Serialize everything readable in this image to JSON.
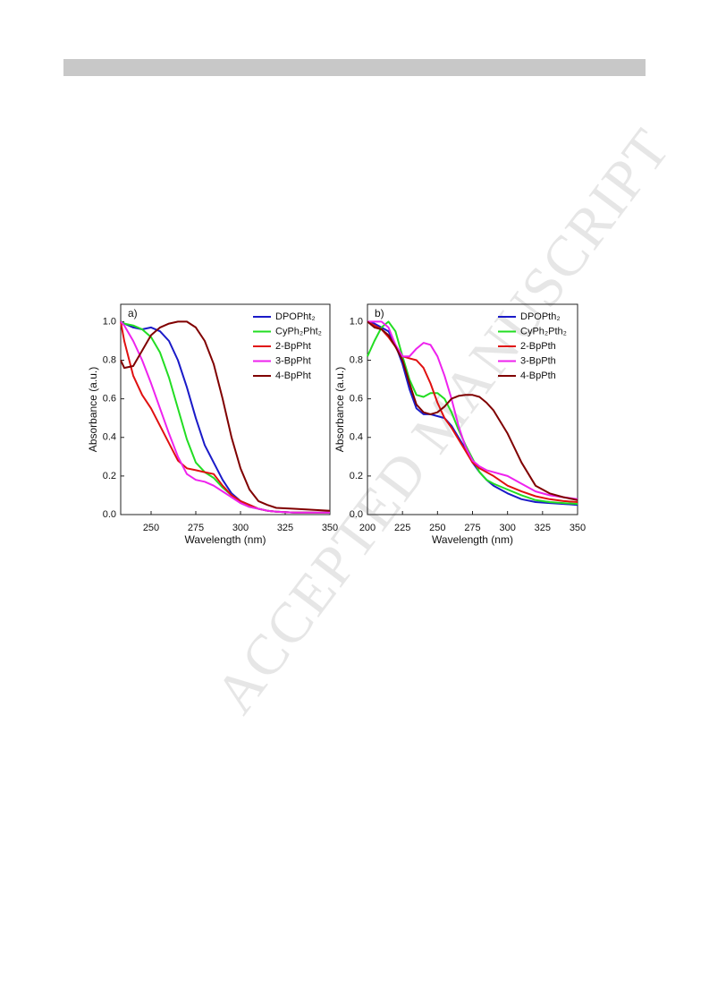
{
  "watermark": "ACCEPTED MANUSCRIPT",
  "chart_data": [
    {
      "type": "line",
      "panel": "a)",
      "x_label": "Wavelength (nm)",
      "y_label": "Absorbance  (a.u.)",
      "x": [
        233,
        235,
        240,
        245,
        250,
        255,
        260,
        265,
        270,
        275,
        280,
        285,
        290,
        295,
        300,
        305,
        310,
        315,
        320,
        330,
        340,
        350
      ],
      "series": [
        {
          "name": "DPOPht₂",
          "color": "#1a1ac8",
          "values": [
            1.0,
            0.99,
            0.97,
            0.96,
            0.97,
            0.95,
            0.9,
            0.8,
            0.66,
            0.5,
            0.36,
            0.27,
            0.18,
            0.11,
            0.07,
            0.05,
            0.03,
            0.02,
            0.015,
            0.01,
            0.01,
            0.01
          ]
        },
        {
          "name": "CyPh₂Pht₂",
          "color": "#22dd22",
          "values": [
            1.0,
            0.99,
            0.98,
            0.96,
            0.92,
            0.84,
            0.71,
            0.55,
            0.39,
            0.27,
            0.22,
            0.19,
            0.14,
            0.1,
            0.06,
            0.04,
            0.03,
            0.02,
            0.015,
            0.01,
            0.01,
            0.01
          ]
        },
        {
          "name": "2-BpPht",
          "color": "#e01010",
          "values": [
            1.0,
            0.9,
            0.72,
            0.62,
            0.55,
            0.46,
            0.37,
            0.28,
            0.24,
            0.23,
            0.22,
            0.21,
            0.15,
            0.1,
            0.07,
            0.05,
            0.03,
            0.02,
            0.015,
            0.01,
            0.01,
            0.01
          ]
        },
        {
          "name": "3-BpPht",
          "color": "#ee22ee",
          "values": [
            1.0,
            0.98,
            0.9,
            0.8,
            0.68,
            0.55,
            0.42,
            0.3,
            0.21,
            0.18,
            0.17,
            0.15,
            0.12,
            0.09,
            0.06,
            0.04,
            0.03,
            0.02,
            0.015,
            0.01,
            0.01,
            0.01
          ]
        },
        {
          "name": "4-BpPht",
          "color": "#800000",
          "values": [
            0.8,
            0.76,
            0.77,
            0.85,
            0.93,
            0.97,
            0.99,
            1.0,
            1.0,
            0.97,
            0.9,
            0.78,
            0.6,
            0.4,
            0.24,
            0.13,
            0.07,
            0.05,
            0.035,
            0.03,
            0.025,
            0.02
          ]
        }
      ],
      "xlim": [
        233,
        350
      ],
      "xticks": [
        250,
        275,
        300,
        325,
        350
      ],
      "ylim": [
        0,
        1.09
      ],
      "yticks": [
        {
          "value": 0,
          "label": "0.0"
        },
        {
          "value": 0.2,
          "label": "0.2"
        },
        {
          "value": 0.4,
          "label": "0.4"
        },
        {
          "value": 0.6,
          "label": "0.6"
        },
        {
          "value": 0.8,
          "label": "0.8"
        },
        {
          "value": 1,
          "label": "1.0"
        }
      ],
      "legend": "upper right",
      "grid": false
    },
    {
      "type": "line",
      "panel": "b)",
      "x_label": "Wavelength (nm)",
      "y_label": "Absorbance  (a.u.)",
      "x": [
        200,
        205,
        210,
        215,
        220,
        225,
        230,
        235,
        240,
        245,
        250,
        255,
        260,
        265,
        270,
        275,
        280,
        285,
        290,
        300,
        310,
        320,
        330,
        340,
        350
      ],
      "series": [
        {
          "name": "DPOPth₂",
          "color": "#1a1ac8",
          "values": [
            1.0,
            0.99,
            0.97,
            0.95,
            0.88,
            0.78,
            0.65,
            0.55,
            0.52,
            0.52,
            0.51,
            0.5,
            0.46,
            0.4,
            0.34,
            0.27,
            0.22,
            0.18,
            0.15,
            0.11,
            0.08,
            0.065,
            0.06,
            0.055,
            0.05
          ]
        },
        {
          "name": "CyPh₂Pth₂",
          "color": "#22dd22",
          "values": [
            0.82,
            0.9,
            0.97,
            1.0,
            0.95,
            0.82,
            0.7,
            0.62,
            0.61,
            0.63,
            0.63,
            0.6,
            0.53,
            0.44,
            0.36,
            0.29,
            0.22,
            0.18,
            0.16,
            0.13,
            0.1,
            0.075,
            0.065,
            0.06,
            0.055
          ]
        },
        {
          "name": "2-BpPth",
          "color": "#e01010",
          "values": [
            1.0,
            0.98,
            0.96,
            0.92,
            0.87,
            0.82,
            0.81,
            0.8,
            0.76,
            0.68,
            0.58,
            0.5,
            0.45,
            0.39,
            0.33,
            0.27,
            0.24,
            0.22,
            0.2,
            0.15,
            0.12,
            0.095,
            0.08,
            0.07,
            0.065
          ]
        },
        {
          "name": "3-BpPth",
          "color": "#ee22ee",
          "values": [
            1.0,
            1.0,
            1.0,
            0.97,
            0.88,
            0.82,
            0.82,
            0.86,
            0.89,
            0.88,
            0.82,
            0.72,
            0.6,
            0.46,
            0.35,
            0.28,
            0.25,
            0.23,
            0.22,
            0.2,
            0.16,
            0.12,
            0.1,
            0.09,
            0.08
          ]
        },
        {
          "name": "4-BpPth",
          "color": "#800000",
          "values": [
            1.0,
            0.97,
            0.96,
            0.93,
            0.87,
            0.8,
            0.68,
            0.57,
            0.53,
            0.52,
            0.53,
            0.56,
            0.6,
            0.615,
            0.62,
            0.62,
            0.61,
            0.58,
            0.54,
            0.42,
            0.27,
            0.15,
            0.11,
            0.09,
            0.075
          ]
        }
      ],
      "xlim": [
        200,
        350
      ],
      "xticks": [
        200,
        225,
        250,
        275,
        300,
        325,
        350
      ],
      "ylim": [
        0,
        1.09
      ],
      "yticks": [
        {
          "value": 0,
          "label": "0.0"
        },
        {
          "value": 0.2,
          "label": "0.2"
        },
        {
          "value": 0.4,
          "label": "0.4"
        },
        {
          "value": 0.6,
          "label": "0.6"
        },
        {
          "value": 0.8,
          "label": "0.8"
        },
        {
          "value": 1,
          "label": "1.0"
        }
      ],
      "legend": "upper right",
      "grid": false
    }
  ]
}
